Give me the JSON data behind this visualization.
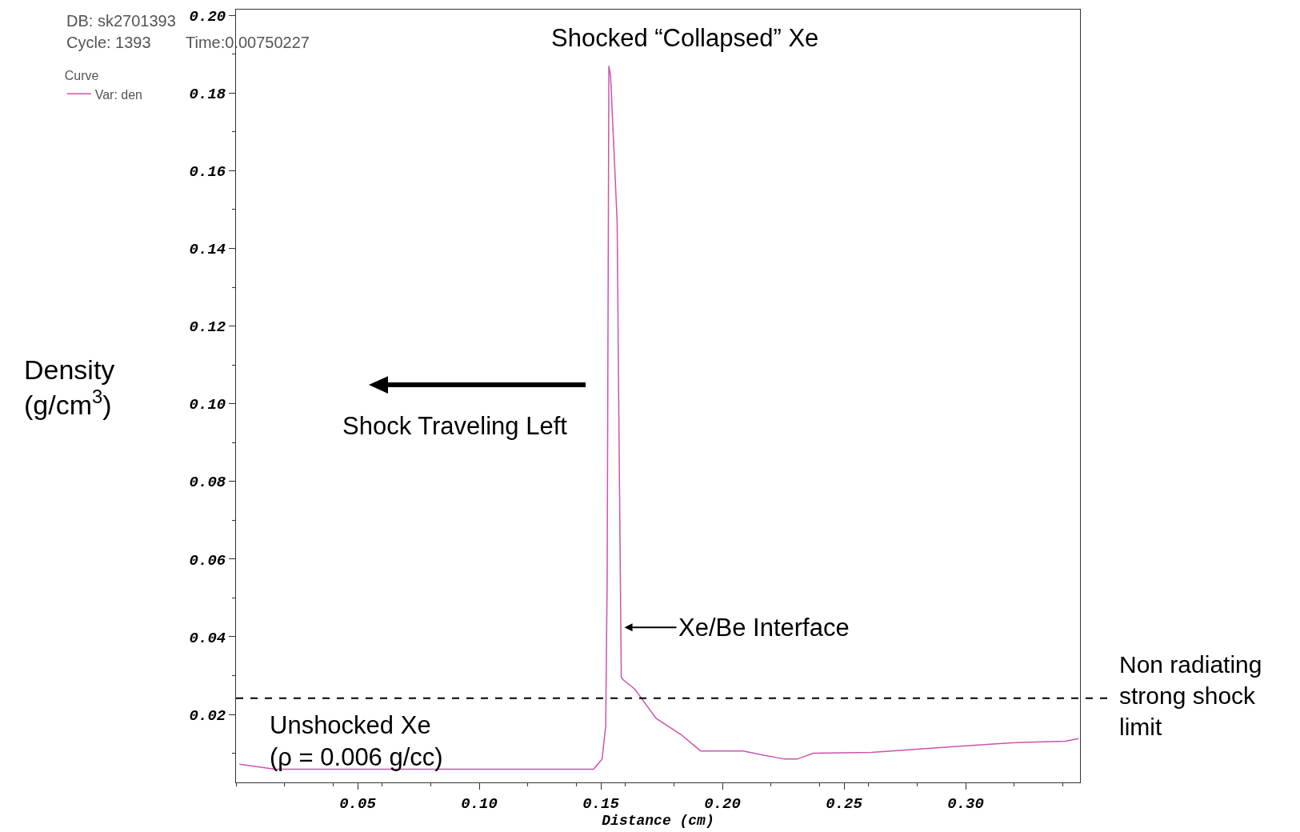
{
  "chart_data": {
    "type": "line",
    "xlabel": "Distance (cm)",
    "ylabel": "Density\n(g/cm$^{3}$)",
    "legend_title": "Curve",
    "legend": "top left",
    "marker": "none",
    "line_style": "solid",
    "x": [
      0.0014,
      0.016,
      0.147,
      0.1505,
      0.152,
      0.1526,
      0.1533,
      0.154,
      0.1557,
      0.1567,
      0.1574,
      0.1584,
      0.159,
      0.164,
      0.1727,
      0.183,
      0.191,
      0.1965,
      0.2085,
      0.217,
      0.2255,
      0.2306,
      0.2374,
      0.2613,
      0.2953,
      0.319,
      0.341,
      0.3464
    ],
    "series": [
      {
        "name": "Var: den",
        "color": "#cc55aa",
        "values": [
          0.0072,
          0.0059,
          0.0059,
          0.0085,
          0.017,
          0.055,
          0.187,
          0.1845,
          0.161,
          0.147,
          0.0976,
          0.0297,
          0.029,
          0.0265,
          0.019,
          0.0148,
          0.0106,
          0.0106,
          0.0106,
          0.0095,
          0.0085,
          0.0085,
          0.01,
          0.0102,
          0.0117,
          0.0127,
          0.0131,
          0.0138
        ]
      }
    ],
    "xlim": [
      0,
      0.347
    ],
    "ylim": [
      0.0025,
      0.2015
    ],
    "xticks": [
      {
        "value": 0.05,
        "label": "0.05"
      },
      {
        "value": 0.1,
        "label": "0.10"
      },
      {
        "value": 0.15,
        "label": "0.15"
      },
      {
        "value": 0.2,
        "label": "0.20"
      },
      {
        "value": 0.25,
        "label": "0.25"
      },
      {
        "value": 0.3,
        "label": "0.30"
      }
    ],
    "yticks": [
      {
        "value": 0.02,
        "label": "0.02"
      },
      {
        "value": 0.04,
        "label": "0.04"
      },
      {
        "value": 0.06,
        "label": "0.06"
      },
      {
        "value": 0.08,
        "label": "0.08"
      },
      {
        "value": 0.1,
        "label": "0.10"
      },
      {
        "value": 0.12,
        "label": "0.12"
      },
      {
        "value": 0.14,
        "label": "0.14"
      },
      {
        "value": 0.16,
        "label": "0.16"
      },
      {
        "value": 0.18,
        "label": "0.18"
      },
      {
        "value": 0.2,
        "label": "0.20"
      }
    ],
    "ref_lines": [
      {
        "axis": "y",
        "value": 0.0242,
        "label": "Non radiating\nstrong shock\nlimit",
        "color": "#000000",
        "line_style": "dashed"
      }
    ],
    "annotations": [
      "DB: sk2701393",
      "Cycle: 1393",
      "Time:0.00750227",
      "Shocked “Collapsed” Xe",
      "Shock Traveling Left",
      "Unshocked Xe\n(ρ = 0.006 g/cc)",
      {
        "text": "Xe/Be Interface",
        "x": 0.1597,
        "y": 0.0424
      }
    ]
  }
}
